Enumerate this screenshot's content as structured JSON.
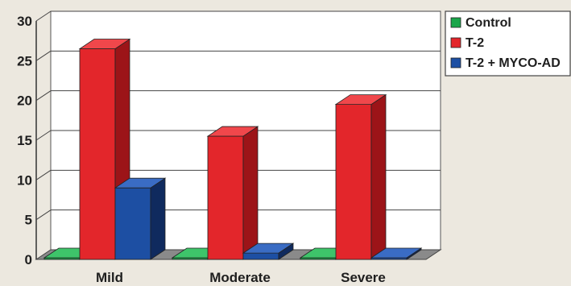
{
  "chart_data": {
    "type": "bar",
    "title": "",
    "xlabel": "",
    "ylabel": "",
    "categories": [
      "Mild",
      "Moderate",
      "Severe"
    ],
    "series": [
      {
        "name": "Control",
        "values": [
          0,
          0,
          0
        ],
        "color": "#1aa64a",
        "side": "#0d6a2c",
        "top": "#3ec46a"
      },
      {
        "name": "T-2",
        "values": [
          26.5,
          15.5,
          19.5
        ],
        "color": "#e3262b",
        "side": "#9c1418",
        "top": "#f0474b"
      },
      {
        "name": "T-2 + MYCO-AD",
        "values": [
          9,
          0.8,
          0
        ],
        "color": "#1d4fa3",
        "side": "#0f2a5e",
        "top": "#3a6cc4"
      }
    ],
    "yticks": [
      0,
      5,
      10,
      15,
      20,
      25,
      30
    ],
    "ylim": [
      0,
      30
    ],
    "grid": true,
    "legend_position": "top-right",
    "three_d": true
  }
}
